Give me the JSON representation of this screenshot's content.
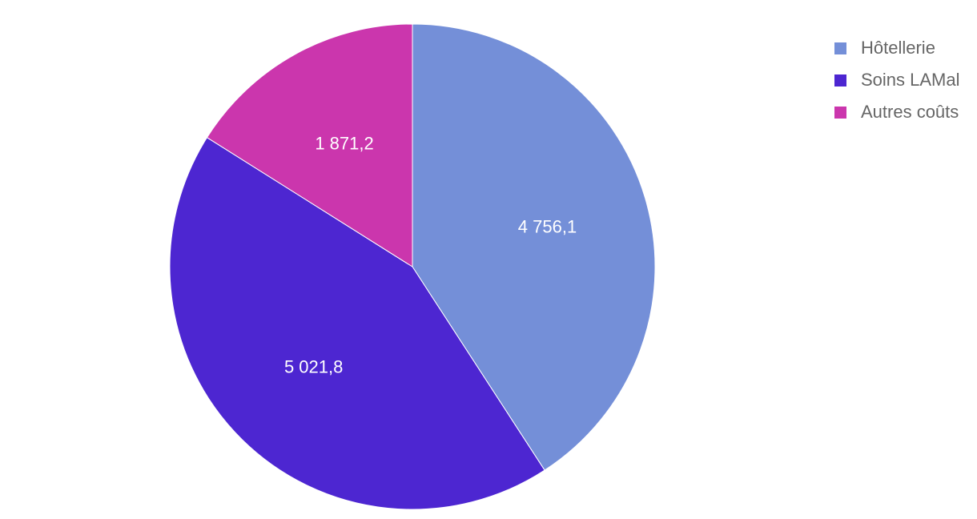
{
  "chart_data": {
    "type": "pie",
    "title": "",
    "legend_position": "top-right",
    "slices": [
      {
        "name": "Hôtellerie",
        "value": 4756.1,
        "label": "4 756,1",
        "color": "#748fd8"
      },
      {
        "name": "Soins LAMal",
        "value": 5021.8,
        "label": "5 021,8",
        "color": "#4d26d1"
      },
      {
        "name": "Autres coûts",
        "value": 1871.2,
        "label": "1 871,2",
        "color": "#cb36ad"
      }
    ]
  }
}
